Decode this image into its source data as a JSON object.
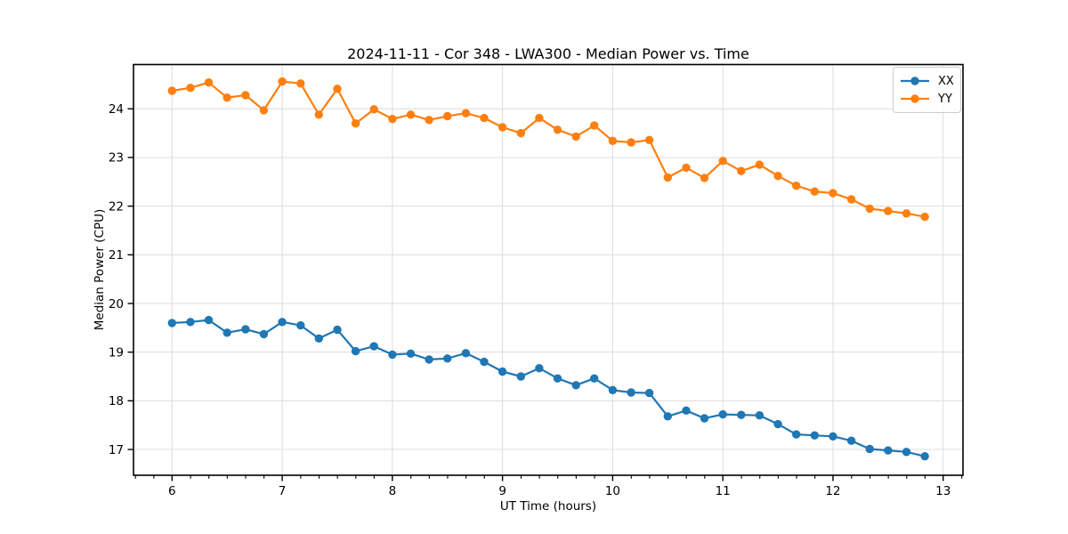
{
  "title": "2024-11-11 - Cor 348 - LWA300 - Median Power vs. Time",
  "chart_data": {
    "type": "line",
    "title": "2024-11-11 - Cor 348 - LWA300 - Median Power vs. Time",
    "xlabel": "UT Time (hours)",
    "ylabel": "Median Power (CPU)",
    "xlim": [
      5.65,
      13.18
    ],
    "ylim": [
      16.47,
      24.91
    ],
    "x_ticks": [
      6,
      7,
      8,
      9,
      10,
      11,
      12,
      13
    ],
    "y_ticks": [
      17,
      18,
      19,
      20,
      21,
      22,
      23,
      24
    ],
    "minor_x_tick_step": 0.1667,
    "grid": true,
    "grid_color": "#dcdcdc",
    "legend_position": "upper right",
    "x": [
      6.0,
      6.167,
      6.333,
      6.5,
      6.667,
      6.833,
      7.0,
      7.167,
      7.333,
      7.5,
      7.667,
      7.833,
      8.0,
      8.167,
      8.333,
      8.5,
      8.667,
      8.833,
      9.0,
      9.167,
      9.333,
      9.5,
      9.667,
      9.833,
      10.0,
      10.167,
      10.333,
      10.5,
      10.667,
      10.833,
      11.0,
      11.167,
      11.333,
      11.5,
      11.667,
      11.833,
      12.0,
      12.167,
      12.333,
      12.5,
      12.667,
      12.833
    ],
    "series": [
      {
        "name": "XX",
        "color": "#1f77b4",
        "values": [
          19.6,
          19.62,
          19.66,
          19.4,
          19.47,
          19.37,
          19.62,
          19.55,
          19.28,
          19.46,
          19.02,
          19.12,
          18.95,
          18.97,
          18.85,
          18.87,
          18.98,
          18.8,
          18.6,
          18.5,
          18.67,
          18.46,
          18.32,
          18.46,
          18.22,
          18.17,
          18.16,
          17.68,
          17.8,
          17.64,
          17.72,
          17.71,
          17.7,
          17.52,
          17.31,
          17.29,
          17.27,
          17.18,
          17.01,
          16.98,
          16.95,
          16.86
        ]
      },
      {
        "name": "YY",
        "color": "#ff7f0e",
        "values": [
          24.37,
          24.43,
          24.54,
          24.23,
          24.28,
          23.97,
          24.56,
          24.52,
          23.88,
          24.41,
          23.7,
          23.99,
          23.79,
          23.88,
          23.77,
          23.85,
          23.91,
          23.81,
          23.62,
          23.5,
          23.81,
          23.57,
          23.43,
          23.66,
          23.34,
          23.31,
          23.36,
          22.59,
          22.79,
          22.58,
          22.93,
          22.72,
          22.85,
          22.62,
          22.42,
          22.3,
          22.27,
          22.14,
          21.95,
          21.9,
          21.85,
          21.78
        ]
      }
    ]
  }
}
